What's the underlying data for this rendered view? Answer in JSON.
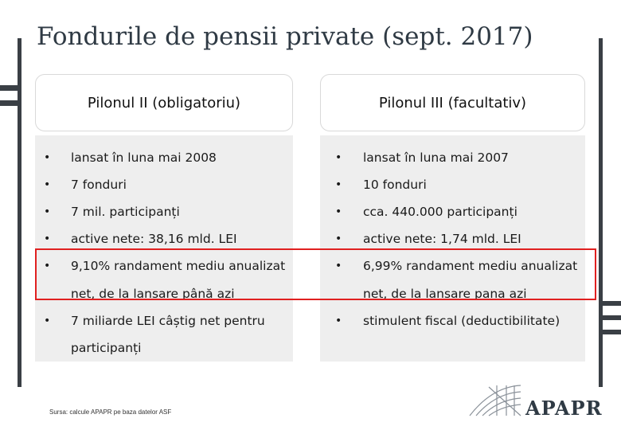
{
  "title": "Fondurile de pensii private (sept. 2017)",
  "left": {
    "header": "Pilonul II (obligatoriu)",
    "items": [
      "lansat în luna mai 2008",
      "7 fonduri",
      "7 mil. participanți",
      "active nete: 38,16 mld. LEI",
      "9,10% randament mediu anualizat",
      "net, de la lansare până azi",
      "7 miliarde LEI câștig net pentru",
      "participanți"
    ]
  },
  "right": {
    "header": "Pilonul III (facultativ)",
    "items": [
      "lansat în luna mai 2007",
      "10 fonduri",
      "cca. 440.000 participanți",
      "active nete: 1,74 mld. LEI",
      "6,99% randament mediu anualizat",
      "net, de la lansare pana azi",
      "stimulent fiscal (deductibilitate)"
    ]
  },
  "bullet": "•",
  "source": "Sursa: calcule APAPR pe baza datelor ASF",
  "logo": {
    "name": "APAPR",
    "icon": "apapr-logo-icon"
  },
  "colors": {
    "title": "#2f3a44",
    "highlight": "#e02020",
    "panel": "#eeeeee",
    "bars": "#3a3f45"
  }
}
